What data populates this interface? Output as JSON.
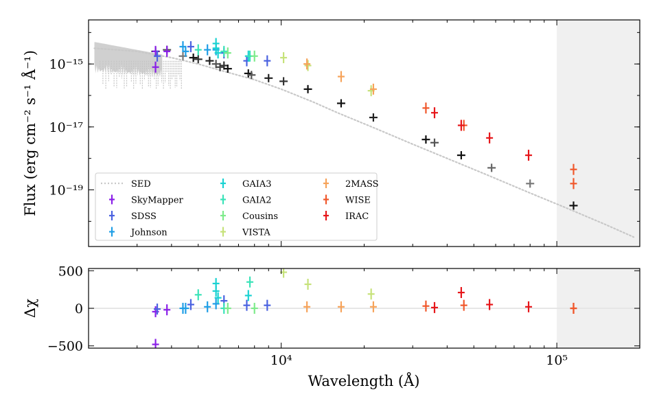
{
  "chart_data": {
    "type": "scatter",
    "xlabel": "Wavelength (Å)",
    "top_panel": {
      "ylabel": "Flux (erg cm⁻² s⁻¹ Å⁻¹)",
      "xlim": [
        2000,
        200000
      ],
      "ylim_log10": [
        -20.8,
        -13.6
      ],
      "y_ticks": [
        {
          "label": "10⁻¹⁵",
          "value": -15
        },
        {
          "label": "10⁻¹⁷",
          "value": -17
        },
        {
          "label": "10⁻¹⁹",
          "value": -19
        }
      ],
      "shaded_region_x": [
        100000,
        200000
      ]
    },
    "bottom_panel": {
      "ylabel": "Δχ",
      "ylim": [
        -530,
        530
      ],
      "y_ticks": [
        {
          "label": "500",
          "value": 500
        },
        {
          "label": "0",
          "value": 0
        },
        {
          "label": "−500",
          "value": -500
        }
      ],
      "shaded_region_x": [
        100000,
        200000
      ]
    },
    "x_ticks": [
      {
        "label": "10⁴",
        "value": 10000
      },
      {
        "label": "10⁵",
        "value": 100000
      }
    ],
    "legend": {
      "position": "lower-left",
      "entries": [
        {
          "label": "SED",
          "color": "#c8c8c8",
          "style": "dotted-line"
        },
        {
          "label": "SkyMapper",
          "color": "#8a1fe8"
        },
        {
          "label": "SDSS",
          "color": "#4a62e0"
        },
        {
          "label": "Johnson",
          "color": "#1f9ee6"
        },
        {
          "label": "GAIA3",
          "color": "#1ad2d2"
        },
        {
          "label": "GAIA2",
          "color": "#3ae3b8"
        },
        {
          "label": "Cousins",
          "color": "#7deb8a"
        },
        {
          "label": "VISTA",
          "color": "#c6e27a"
        },
        {
          "label": "2MASS",
          "color": "#f6a35a"
        },
        {
          "label": "WISE",
          "color": "#f0582c"
        },
        {
          "label": "IRAC",
          "color": "#e6161a"
        }
      ]
    },
    "sed_curve": {
      "wavelength": [
        2100,
        3000,
        4000,
        5000,
        6000,
        8000,
        10000,
        13000,
        16000,
        22000,
        30000,
        40000,
        55000,
        80000,
        110000,
        150000,
        190000
      ],
      "log_flux": [
        -14.5,
        -14.6,
        -14.8,
        -15.0,
        -15.2,
        -15.5,
        -15.8,
        -16.2,
        -16.55,
        -17.05,
        -17.55,
        -18.0,
        -18.5,
        -19.1,
        -19.6,
        -20.1,
        -20.5
      ]
    },
    "model_points": {
      "wavelength": [
        3500,
        3850,
        4400,
        4800,
        5000,
        5500,
        5800,
        6000,
        6200,
        6400,
        7600,
        7800,
        9000,
        10200,
        12500,
        16500,
        21600,
        33500,
        36000,
        45000,
        58000,
        80000,
        115000
      ],
      "log_flux": [
        -14.6,
        -14.55,
        -14.75,
        -14.8,
        -14.85,
        -14.9,
        -15.0,
        -15.1,
        -15.05,
        -15.15,
        -15.3,
        -15.35,
        -15.45,
        -15.55,
        -15.8,
        -16.25,
        -16.7,
        -17.4,
        -17.5,
        -17.9,
        -18.3,
        -18.8,
        -19.5
      ],
      "colors": [
        "#111111",
        "#555555",
        "#777777",
        "#111111",
        "#333333",
        "#222222",
        "#555555",
        "#444444",
        "#333333",
        "#111111",
        "#111111",
        "#555555",
        "#222222",
        "#333333",
        "#111111",
        "#111111",
        "#222222",
        "#111111",
        "#555555",
        "#111111",
        "#666666",
        "#777777",
        "#111111"
      ]
    },
    "series": [
      {
        "name": "SkyMapper",
        "color": "#8a1fe8",
        "wavelength": [
          3500,
          3500,
          3850
        ],
        "log_flux": [
          -14.6,
          -15.1,
          -14.6
        ],
        "residual": [
          -45,
          -480,
          -20
        ]
      },
      {
        "name": "SDSS",
        "color": "#4a62e0",
        "wavelength": [
          3550,
          4700,
          6200,
          7500,
          8900
        ],
        "log_flux": [
          -14.75,
          -14.45,
          -14.65,
          -14.9,
          -14.9
        ],
        "residual": [
          -10,
          50,
          100,
          40,
          40
        ]
      },
      {
        "name": "Johnson",
        "color": "#1f9ee6",
        "wavelength": [
          4400,
          4500,
          5400,
          5800
        ],
        "log_flux": [
          -14.45,
          -14.6,
          -14.55,
          -14.55
        ],
        "residual": [
          0,
          0,
          20,
          60
        ]
      },
      {
        "name": "GAIA3",
        "color": "#1ad2d2",
        "wavelength": [
          5800,
          5800,
          5900,
          7600
        ],
        "log_flux": [
          -14.35,
          -14.5,
          -14.65,
          -14.75
        ],
        "residual": [
          330,
          230,
          140,
          170
        ]
      },
      {
        "name": "GAIA2",
        "color": "#3ae3b8",
        "wavelength": [
          5000,
          6200,
          7700
        ],
        "log_flux": [
          -14.55,
          -14.6,
          -14.75
        ],
        "residual": [
          180,
          0,
          350
        ]
      },
      {
        "name": "Cousins",
        "color": "#7deb8a",
        "wavelength": [
          6400,
          8000
        ],
        "log_flux": [
          -14.65,
          -14.75
        ],
        "residual": [
          0,
          0
        ]
      },
      {
        "name": "VISTA",
        "color": "#c6e27a",
        "wavelength": [
          10200,
          12500,
          21200
        ],
        "log_flux": [
          -14.8,
          -15.05,
          -15.85
        ],
        "residual": [
          480,
          320,
          190
        ]
      },
      {
        "name": "2MASS",
        "color": "#f6a35a",
        "wavelength": [
          12400,
          16500,
          21600
        ],
        "log_flux": [
          -15.0,
          -15.4,
          -15.8
        ],
        "residual": [
          20,
          20,
          20
        ]
      },
      {
        "name": "WISE",
        "color": "#f0582c",
        "wavelength": [
          33500,
          46000,
          115000,
          115000
        ],
        "log_flux": [
          -16.4,
          -16.95,
          -18.35,
          -18.8
        ],
        "residual": [
          30,
          40,
          0,
          0
        ]
      },
      {
        "name": "IRAC",
        "color": "#e6161a",
        "wavelength": [
          36000,
          45000,
          57000,
          79000
        ],
        "log_flux": [
          -16.55,
          -16.95,
          -17.35,
          -17.9
        ],
        "residual": [
          10,
          210,
          50,
          20
        ]
      }
    ]
  }
}
